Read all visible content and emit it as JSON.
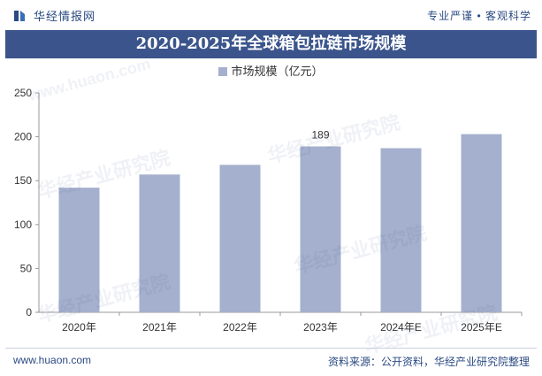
{
  "header": {
    "brand": "华经情报网",
    "tagline": "专业严谨 • 客观科学"
  },
  "title": "2020-2025年全球箱包拉链市场规模",
  "chart_data": {
    "type": "bar",
    "title": "2020-2025年全球箱包拉链市场规模",
    "categories": [
      "2020年",
      "2021年",
      "2022年",
      "2023年",
      "2024年E",
      "2025年E"
    ],
    "series": [
      {
        "name": "市场规模（亿元）",
        "values": [
          142,
          157,
          168,
          189,
          187,
          203
        ]
      }
    ],
    "data_labels": [
      {
        "category": "2023年",
        "text": "189"
      }
    ],
    "ylim": [
      0,
      250
    ],
    "yticks": [
      0,
      50,
      100,
      150,
      200,
      250
    ],
    "xlabel": "",
    "ylabel": "",
    "grid": false,
    "legend_position": "top",
    "bar_color": "#a4b0cd"
  },
  "watermarks": [
    "华经产业研究院",
    "www.huaon.com"
  ],
  "footer": {
    "url": "www.huaon.com",
    "source": "资料来源：公开资料，华经产业研究院整理"
  }
}
